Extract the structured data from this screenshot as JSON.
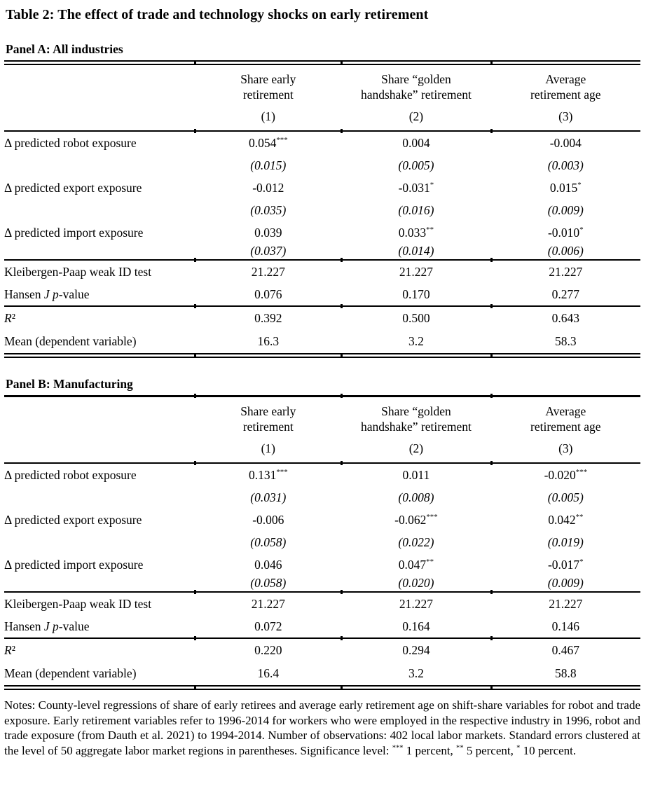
{
  "title": "Table 2: The effect of trade and technology shocks on early retirement",
  "panels": [
    {
      "heading": "Panel A: All industries",
      "columns": [
        "Share early\nretirement",
        "Share “golden\nhandshake” retirement",
        "Average\nretirement age"
      ],
      "column_numbers": [
        "(1)",
        "(2)",
        "(3)"
      ],
      "coefficients": [
        {
          "label": "Δ predicted robot exposure",
          "values": [
            "0.054",
            "0.004",
            "-0.004"
          ],
          "stars": [
            "***",
            "",
            ""
          ],
          "se": [
            "(0.015)",
            "(0.005)",
            "(0.003)"
          ]
        },
        {
          "label": "Δ predicted export exposure",
          "values": [
            "-0.012",
            "-0.031",
            "0.015"
          ],
          "stars": [
            "",
            "*",
            "*"
          ],
          "se": [
            "(0.035)",
            "(0.016)",
            "(0.009)"
          ]
        },
        {
          "label": "Δ predicted import exposure",
          "values": [
            "0.039",
            "0.033",
            "-0.010"
          ],
          "stars": [
            "",
            "**",
            "*"
          ],
          "se": [
            "(0.037)",
            "(0.014)",
            "(0.006)"
          ]
        }
      ],
      "statistics": [
        {
          "label": "Kleibergen-Paap weak ID test",
          "values": [
            "21.227",
            "21.227",
            "21.227"
          ]
        },
        {
          "label": "Hansen J p-value",
          "values": [
            "0.076",
            "0.170",
            "0.277"
          ]
        }
      ],
      "fit": [
        {
          "label": "R²",
          "values": [
            "0.392",
            "0.500",
            "0.643"
          ]
        },
        {
          "label": "Mean (dependent variable)",
          "values": [
            "16.3",
            "3.2",
            "58.3"
          ]
        }
      ]
    },
    {
      "heading": "Panel B: Manufacturing",
      "columns": [
        "Share early\nretirement",
        "Share “golden\nhandshake” retirement",
        "Average\nretirement age"
      ],
      "column_numbers": [
        "(1)",
        "(2)",
        "(3)"
      ],
      "coefficients": [
        {
          "label": "Δ predicted robot exposure",
          "values": [
            "0.131",
            "0.011",
            "-0.020"
          ],
          "stars": [
            "***",
            "",
            "***"
          ],
          "se": [
            "(0.031)",
            "(0.008)",
            "(0.005)"
          ]
        },
        {
          "label": "Δ predicted export exposure",
          "values": [
            "-0.006",
            "-0.062",
            "0.042"
          ],
          "stars": [
            "",
            "***",
            "**"
          ],
          "se": [
            "(0.058)",
            "(0.022)",
            "(0.019)"
          ]
        },
        {
          "label": "Δ predicted import exposure",
          "values": [
            "0.046",
            "0.047",
            "-0.017"
          ],
          "stars": [
            "",
            "**",
            "*"
          ],
          "se": [
            "(0.058)",
            "(0.020)",
            "(0.009)"
          ]
        }
      ],
      "statistics": [
        {
          "label": "Kleibergen-Paap weak ID test",
          "values": [
            "21.227",
            "21.227",
            "21.227"
          ]
        },
        {
          "label": "Hansen J p-value",
          "values": [
            "0.072",
            "0.164",
            "0.146"
          ]
        }
      ],
      "fit": [
        {
          "label": "R²",
          "values": [
            "0.220",
            "0.294",
            "0.467"
          ]
        },
        {
          "label": "Mean (dependent variable)",
          "values": [
            "16.4",
            "3.2",
            "58.8"
          ]
        }
      ]
    }
  ],
  "notes": {
    "body": "Notes: County-level regressions of share of early retirees and average early retirement age on shift-share variables for robot and trade exposure. Early retirement variables refer to 1996-2014 for workers who were employed in the respective industry in 1996, robot and trade exposure (from Dauth et al. 2021) to 1994-2014. Number of observations: 402 local labor markets. Standard errors clustered at the level of 50 aggregate labor market regions in parentheses.",
    "significance_prefix": "Significance level:",
    "significance_levels": [
      {
        "stars": "***",
        "label": "1 percent,"
      },
      {
        "stars": "**",
        "label": "5 percent,"
      },
      {
        "stars": "*",
        "label": "10 percent."
      }
    ]
  }
}
